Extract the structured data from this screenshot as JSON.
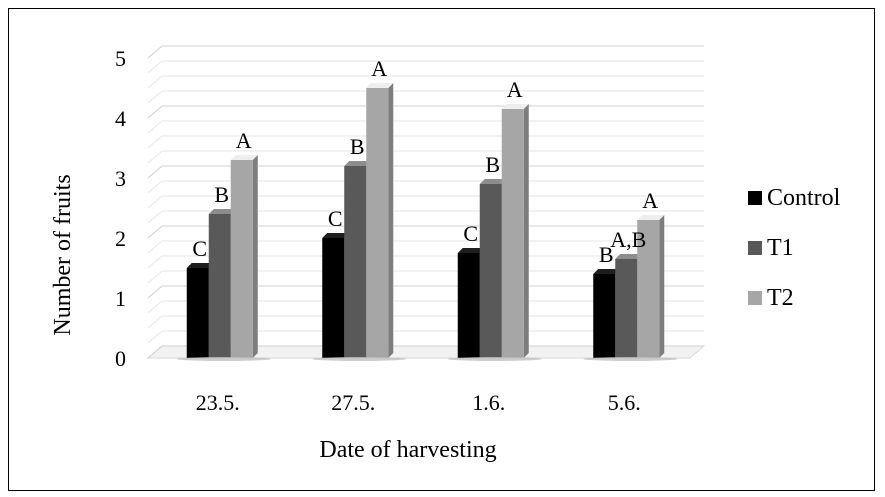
{
  "chart_data": {
    "type": "bar",
    "xlabel": "Date of harvesting",
    "ylabel": "Number of fruits",
    "ylim": [
      0,
      5
    ],
    "yticks": [
      "0",
      "1",
      "2",
      "3",
      "4",
      "5"
    ],
    "grid": true,
    "legend_position": "right",
    "categories": [
      "23.5.",
      "27.5.",
      "1.6.",
      "5.6."
    ],
    "series": [
      {
        "name": "Control",
        "color": "#000000",
        "values": [
          1.5,
          2.0,
          1.75,
          1.4
        ],
        "labels": [
          "C",
          "C",
          "C",
          "B"
        ]
      },
      {
        "name": "T1",
        "color": "#595959",
        "values": [
          2.4,
          3.2,
          2.9,
          1.65
        ],
        "labels": [
          "B",
          "B",
          "B",
          "A,B"
        ]
      },
      {
        "name": "T2",
        "color": "#a6a6a6",
        "values": [
          3.3,
          4.5,
          4.15,
          2.3
        ],
        "labels": [
          "A",
          "A",
          "A",
          "A"
        ]
      }
    ]
  }
}
